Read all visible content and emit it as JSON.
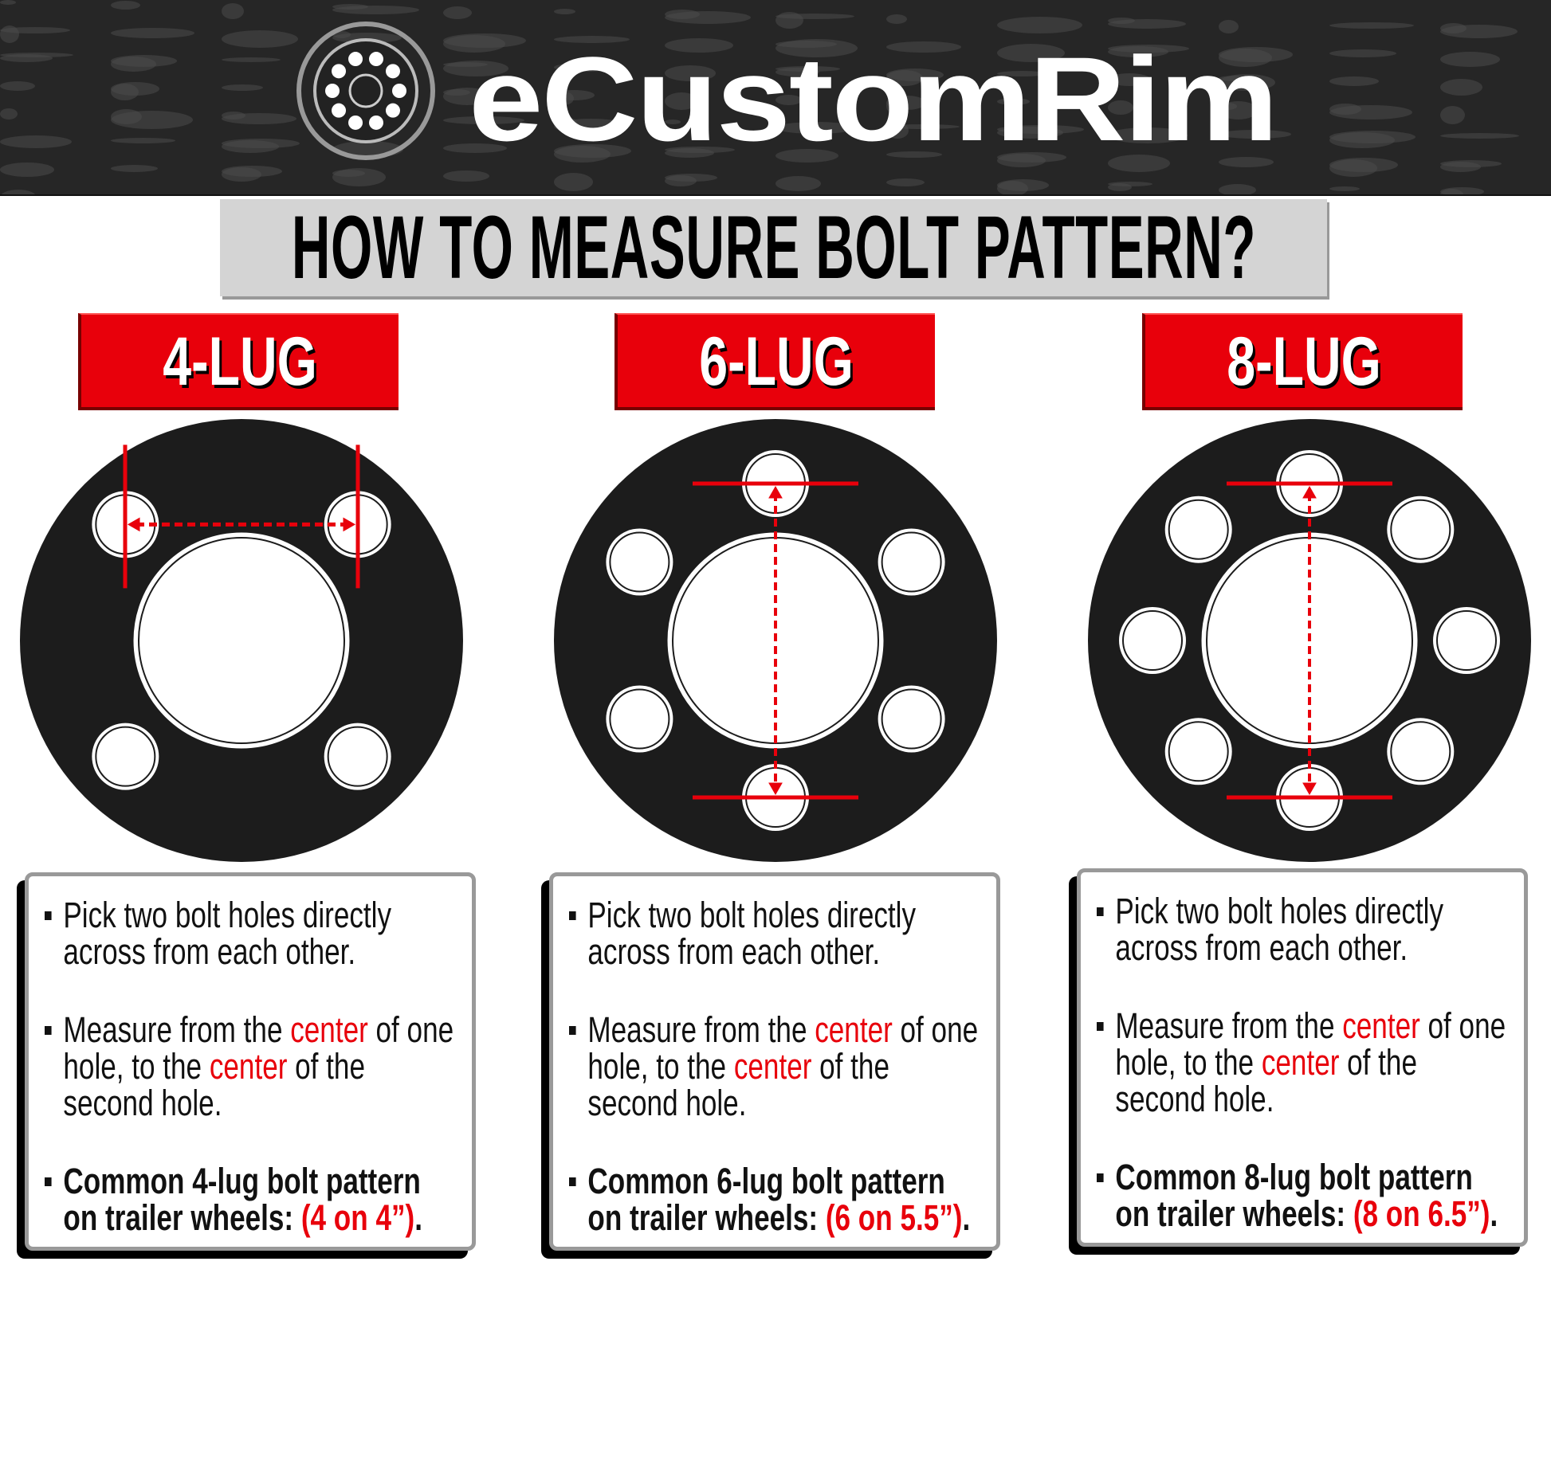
{
  "brand": {
    "name": "eCustomRim",
    "logo": "wheel-logo-icon"
  },
  "title": "HOW TO MEASURE BOLT PATTERN?",
  "colors": {
    "accent": "#e8000b",
    "wheel": "#1c1c1c",
    "title_bg": "#d4d4d4"
  },
  "columns": [
    {
      "label": "4-LUG",
      "lugs": 4,
      "orientation": "horizontal",
      "step1": "Pick two bolt holes directly across from each other.",
      "step2": {
        "a": "Measure from the ",
        "b": "center",
        "c": " of one hole, to the ",
        "d": "center",
        "e": " of the second hole."
      },
      "step3": {
        "a": "Common 4-lug bolt pattern on trailer wheels: ",
        "b": "(4 on 4”)",
        "c": "."
      }
    },
    {
      "label": "6-LUG",
      "lugs": 6,
      "orientation": "vertical",
      "step1": "Pick two bolt holes directly across from each other.",
      "step2": {
        "a": "Measure from the ",
        "b": "center",
        "c": " of one hole, to the ",
        "d": "center",
        "e": " of the second hole."
      },
      "step3": {
        "a": "Common 6-lug bolt pattern on trailer wheels: ",
        "b": "(6 on 5.5”)",
        "c": "."
      }
    },
    {
      "label": "8-LUG",
      "lugs": 8,
      "orientation": "vertical",
      "step1": "Pick two bolt holes directly across from each other.",
      "step2": {
        "a": "Measure from the ",
        "b": "center",
        "c": " of one hole, to the ",
        "d": "center",
        "e": " of the second hole."
      },
      "step3": {
        "a": "Common 8-lug bolt pattern on trailer wheels: ",
        "b": "(8 on 6.5”)",
        "c": "."
      }
    }
  ]
}
